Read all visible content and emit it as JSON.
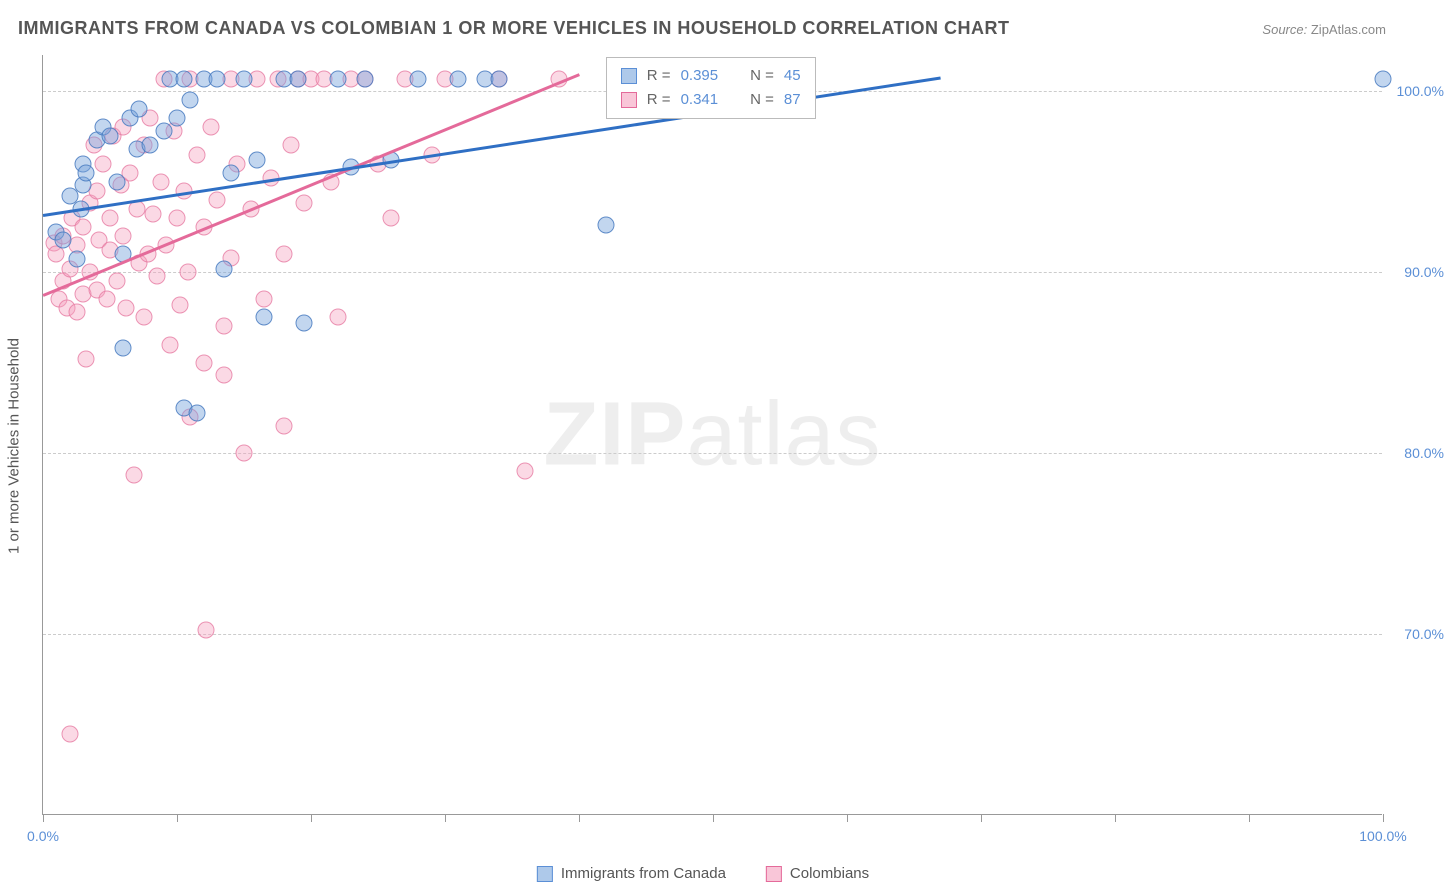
{
  "title": "IMMIGRANTS FROM CANADA VS COLOMBIAN 1 OR MORE VEHICLES IN HOUSEHOLD CORRELATION CHART",
  "source_label": "Source:",
  "source_value": "ZipAtlas.com",
  "yaxis_title": "1 or more Vehicles in Household",
  "watermark": {
    "bold": "ZIP",
    "light": "atlas"
  },
  "chart": {
    "type": "scatter",
    "xlim": [
      0,
      100
    ],
    "ylim": [
      60,
      102
    ],
    "yticks": [
      70,
      80,
      90,
      100
    ],
    "ytick_labels": [
      "70.0%",
      "80.0%",
      "90.0%",
      "100.0%"
    ],
    "xticks": [
      0,
      10,
      20,
      30,
      40,
      50,
      60,
      70,
      80,
      90,
      100
    ],
    "xtick_labels": {
      "0": "0.0%",
      "100": "100.0%"
    },
    "grid_color": "#cccccc",
    "background_color": "#ffffff",
    "axis_color": "#999999",
    "marker_radius": 8.5,
    "series": {
      "blue": {
        "label": "Immigrants from Canada",
        "fill": "rgba(120,165,220,0.45)",
        "stroke": "#4678be",
        "R": "0.395",
        "N": "45",
        "trend": {
          "x1": 0,
          "y1": 93.2,
          "x2": 67,
          "y2": 100.8
        },
        "points": [
          [
            1,
            92.2
          ],
          [
            1.5,
            91.8
          ],
          [
            2,
            94.2
          ],
          [
            2.5,
            90.7
          ],
          [
            2.8,
            93.5
          ],
          [
            3,
            96.0
          ],
          [
            3,
            94.8
          ],
          [
            3.2,
            95.5
          ],
          [
            4,
            97.3
          ],
          [
            4.5,
            98.0
          ],
          [
            5,
            97.5
          ],
          [
            5.5,
            95.0
          ],
          [
            6,
            91.0
          ],
          [
            6,
            85.8
          ],
          [
            6.5,
            98.5
          ],
          [
            7,
            96.8
          ],
          [
            7.2,
            99.0
          ],
          [
            8,
            97.0
          ],
          [
            9,
            97.8
          ],
          [
            9.5,
            100.7
          ],
          [
            10,
            98.5
          ],
          [
            10.5,
            100.7
          ],
          [
            10.5,
            82.5
          ],
          [
            11,
            99.5
          ],
          [
            11.5,
            82.2
          ],
          [
            12,
            100.7
          ],
          [
            13,
            100.7
          ],
          [
            13.5,
            90.2
          ],
          [
            14,
            95.5
          ],
          [
            15,
            100.7
          ],
          [
            16,
            96.2
          ],
          [
            16.5,
            87.5
          ],
          [
            18,
            100.7
          ],
          [
            19,
            100.7
          ],
          [
            19.5,
            87.2
          ],
          [
            22,
            100.7
          ],
          [
            23,
            95.8
          ],
          [
            24,
            100.7
          ],
          [
            26,
            96.2
          ],
          [
            28,
            100.7
          ],
          [
            31,
            100.7
          ],
          [
            33,
            100.7
          ],
          [
            34,
            100.7
          ],
          [
            42,
            92.6
          ],
          [
            100,
            100.7
          ]
        ]
      },
      "pink": {
        "label": "Colombians",
        "fill": "rgba(245,160,190,0.40)",
        "stroke": "#e6789f",
        "R": "0.341",
        "N": "87",
        "trend": {
          "x1": 0,
          "y1": 88.8,
          "x2": 40,
          "y2": 101.0
        },
        "points": [
          [
            0.8,
            91.6
          ],
          [
            1,
            91.0
          ],
          [
            1.2,
            88.5
          ],
          [
            1.5,
            92.0
          ],
          [
            1.5,
            89.5
          ],
          [
            1.8,
            88.0
          ],
          [
            2,
            90.2
          ],
          [
            2,
            64.5
          ],
          [
            2.2,
            93.0
          ],
          [
            2.5,
            91.5
          ],
          [
            2.5,
            87.8
          ],
          [
            3,
            92.5
          ],
          [
            3,
            88.8
          ],
          [
            3.2,
            85.2
          ],
          [
            3.5,
            93.8
          ],
          [
            3.5,
            90.0
          ],
          [
            3.8,
            97.0
          ],
          [
            4,
            94.5
          ],
          [
            4,
            89.0
          ],
          [
            4.2,
            91.8
          ],
          [
            4.5,
            96.0
          ],
          [
            4.8,
            88.5
          ],
          [
            5,
            93.0
          ],
          [
            5,
            91.2
          ],
          [
            5.2,
            97.5
          ],
          [
            5.5,
            89.5
          ],
          [
            5.8,
            94.8
          ],
          [
            6,
            98.0
          ],
          [
            6,
            92.0
          ],
          [
            6.2,
            88.0
          ],
          [
            6.5,
            95.5
          ],
          [
            6.8,
            78.8
          ],
          [
            7,
            93.5
          ],
          [
            7.2,
            90.5
          ],
          [
            7.5,
            97.0
          ],
          [
            7.5,
            87.5
          ],
          [
            7.8,
            91.0
          ],
          [
            8,
            98.5
          ],
          [
            8.2,
            93.2
          ],
          [
            8.5,
            89.8
          ],
          [
            8.8,
            95.0
          ],
          [
            9,
            100.7
          ],
          [
            9.2,
            91.5
          ],
          [
            9.5,
            86.0
          ],
          [
            9.8,
            97.8
          ],
          [
            10,
            93.0
          ],
          [
            10.2,
            88.2
          ],
          [
            10.5,
            94.5
          ],
          [
            10.8,
            90.0
          ],
          [
            11,
            100.7
          ],
          [
            11,
            82.0
          ],
          [
            11.5,
            96.5
          ],
          [
            12,
            92.5
          ],
          [
            12,
            85.0
          ],
          [
            12.2,
            70.2
          ],
          [
            12.5,
            98.0
          ],
          [
            13,
            94.0
          ],
          [
            13.5,
            87.0
          ],
          [
            13.5,
            84.3
          ],
          [
            14,
            100.7
          ],
          [
            14,
            90.8
          ],
          [
            14.5,
            96.0
          ],
          [
            15,
            80.0
          ],
          [
            15.5,
            93.5
          ],
          [
            16,
            100.7
          ],
          [
            16.5,
            88.5
          ],
          [
            17,
            95.2
          ],
          [
            17.5,
            100.7
          ],
          [
            18,
            91.0
          ],
          [
            18,
            81.5
          ],
          [
            18.5,
            97.0
          ],
          [
            19,
            100.7
          ],
          [
            19.5,
            93.8
          ],
          [
            20,
            100.7
          ],
          [
            21,
            100.7
          ],
          [
            21.5,
            95.0
          ],
          [
            22,
            87.5
          ],
          [
            23,
            100.7
          ],
          [
            24,
            100.7
          ],
          [
            25,
            96.0
          ],
          [
            26,
            93.0
          ],
          [
            27,
            100.7
          ],
          [
            29,
            96.5
          ],
          [
            30,
            100.7
          ],
          [
            34,
            100.7
          ],
          [
            36,
            79.0
          ],
          [
            38.5,
            100.7
          ]
        ]
      }
    }
  },
  "stats_box": {
    "rows": [
      {
        "swatch": "blue",
        "R_label": "R =",
        "R_value": "0.395",
        "N_label": "N =",
        "N_value": "45"
      },
      {
        "swatch": "pink",
        "R_label": "R =",
        "R_value": "0.341",
        "N_label": "N =",
        "N_value": "87"
      }
    ]
  },
  "bottom_legend": [
    {
      "swatch": "blue",
      "label": "Immigrants from Canada"
    },
    {
      "swatch": "pink",
      "label": "Colombians"
    }
  ]
}
